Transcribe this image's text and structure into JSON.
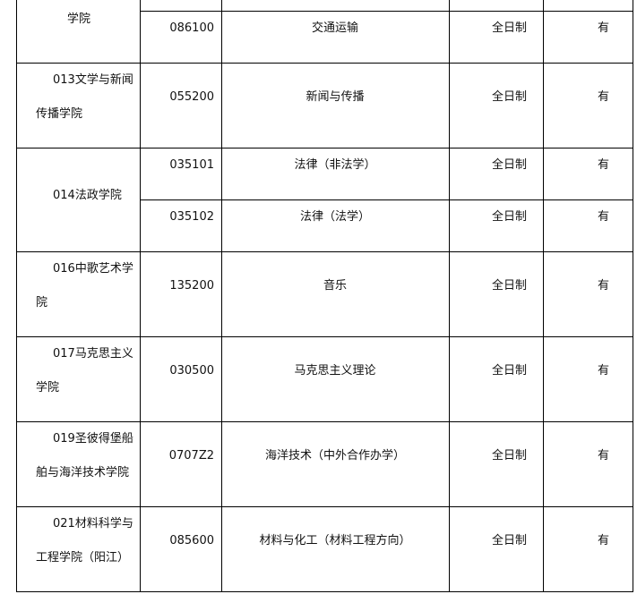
{
  "table": {
    "partial_top_row": {
      "college": "学院",
      "code": "086100",
      "major": "交通运输",
      "mode": "全日制",
      "available": "有"
    },
    "groups": [
      {
        "college_lines": [
          "013文学与新闻",
          "传播学院"
        ],
        "rows": [
          {
            "code": "055200",
            "major": "新闻与传播",
            "mode": "全日制",
            "available": "有"
          }
        ]
      },
      {
        "college_lines": [
          "014法政学院"
        ],
        "rows": [
          {
            "code": "035101",
            "major": "法律（非法学）",
            "mode": "全日制",
            "available": "有"
          },
          {
            "code": "035102",
            "major": "法律（法学）",
            "mode": "全日制",
            "available": "有"
          }
        ]
      },
      {
        "college_lines": [
          "016中歌艺术学",
          "院"
        ],
        "rows": [
          {
            "code": "135200",
            "major": "音乐",
            "mode": "全日制",
            "available": "有"
          }
        ]
      },
      {
        "college_lines": [
          "017马克思主义",
          "学院"
        ],
        "rows": [
          {
            "code": "030500",
            "major": "马克思主义理论",
            "mode": "全日制",
            "available": "有"
          }
        ]
      },
      {
        "college_lines": [
          "019圣彼得堡船",
          "舶与海洋技术学院"
        ],
        "rows": [
          {
            "code": "0707Z2",
            "major": "海洋技术（中外合作办学）",
            "mode": "全日制",
            "available": "有"
          }
        ]
      },
      {
        "college_lines": [
          "021材料科学与",
          "工程学院（阳江）"
        ],
        "rows": [
          {
            "code": "085600",
            "major": "材料与化工（材料工程方向）",
            "mode": "全日制",
            "available": "有"
          }
        ]
      }
    ]
  }
}
